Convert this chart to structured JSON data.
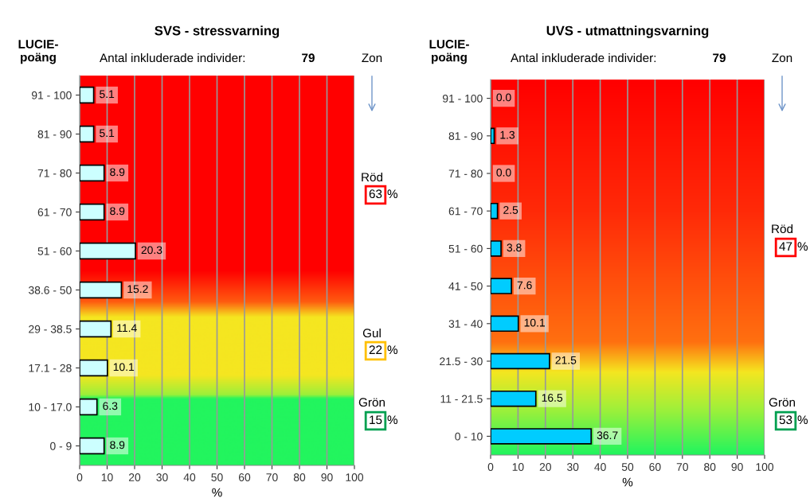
{
  "chart_data": [
    {
      "type": "bar",
      "orientation": "horizontal",
      "title": "SVS - stressvarning",
      "ylabel": "LUCIE-\npoäng",
      "xlabel": "%",
      "categories": [
        "91 - 100",
        "81 - 90",
        "71 - 80",
        "61 - 70",
        "51 - 60",
        "38.6 - 50",
        "29 - 38.5",
        "17.1 - 28",
        "10 - 17.0",
        "0 - 9"
      ],
      "values": [
        5.1,
        5.1,
        8.9,
        8.9,
        20.3,
        15.2,
        11.4,
        10.1,
        6.3,
        8.9
      ],
      "color": "#ccffff",
      "xlim": [
        0,
        100
      ],
      "xticks": [
        0,
        10,
        20,
        30,
        40,
        50,
        60,
        70,
        80,
        90,
        100
      ],
      "grid": "x",
      "data_labels": true,
      "annotations": [
        "Antal inkluderade individer:",
        "79",
        "Zon",
        "Röd",
        "63",
        "%",
        "Gul",
        "22",
        "%",
        "Grön",
        "15",
        "%"
      ]
    },
    {
      "type": "bar",
      "orientation": "horizontal",
      "title": "UVS - utmattningsvarning",
      "ylabel": "LUCIE-\npoäng",
      "xlabel": "%",
      "categories": [
        "91 - 100",
        "81 - 90",
        "71 - 80",
        "61 - 70",
        "51 - 60",
        "41 - 50",
        "31 - 40",
        "21.5 - 30",
        "11 - 21.5",
        "0 - 10"
      ],
      "values": [
        0.0,
        1.3,
        0.0,
        2.5,
        3.8,
        7.6,
        10.1,
        21.5,
        16.5,
        36.7
      ],
      "color": "#00ccff",
      "value_labels": [
        "0.0",
        "1.3",
        "0.0",
        "2.5",
        "3.8",
        "7.6",
        "10.1",
        "21.5",
        "16.5",
        "36.7"
      ],
      "xlim": [
        0,
        100
      ],
      "xticks": [
        0,
        10,
        20,
        30,
        40,
        50,
        60,
        70,
        80,
        90,
        100
      ],
      "grid": "x",
      "annotations": [
        "Antal inkluderade individer:",
        "79",
        "Zon",
        "Röd",
        "47",
        "%",
        "Grön",
        "53",
        "%"
      ]
    }
  ]
}
